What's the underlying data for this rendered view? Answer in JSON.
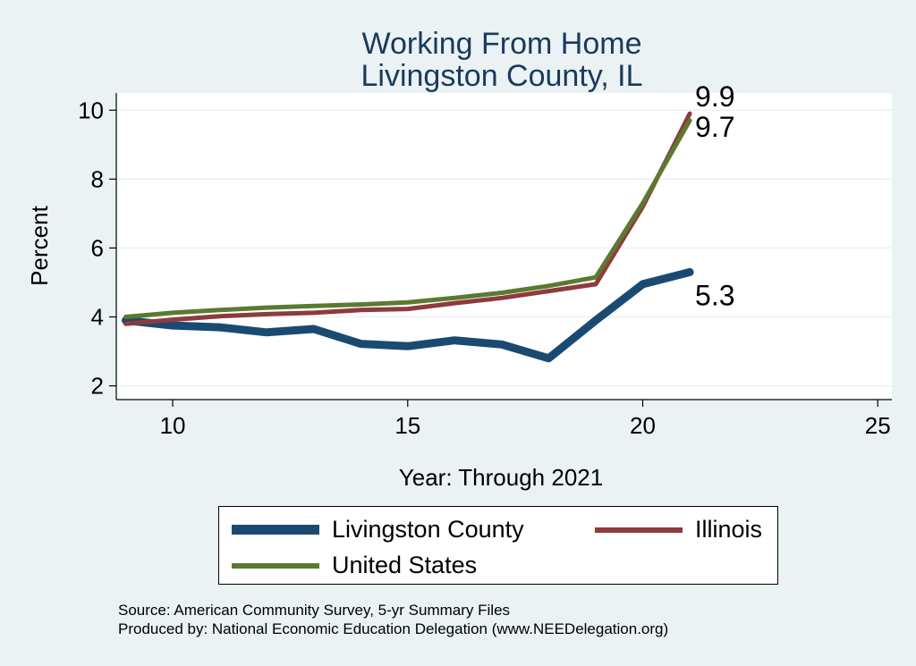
{
  "chart_data": {
    "type": "line",
    "title": "Working From Home",
    "subtitle": "Livingston County, IL",
    "xlabel": "Year: Through 2021",
    "ylabel": "Percent",
    "xlim": [
      8.8,
      25.3
    ],
    "ylim": [
      1.6,
      10.5
    ],
    "xticks": [
      10,
      15,
      20,
      25
    ],
    "yticks": [
      2,
      4,
      6,
      8,
      10
    ],
    "grid": true,
    "legend_position": "bottom",
    "x": [
      9,
      10,
      11,
      12,
      13,
      14,
      15,
      16,
      17,
      18,
      19,
      20,
      21
    ],
    "series": [
      {
        "name": "Livingston County",
        "color": "#1a4a72",
        "values": [
          3.9,
          3.75,
          3.7,
          3.55,
          3.65,
          3.22,
          3.15,
          3.32,
          3.2,
          2.8,
          3.9,
          4.95,
          5.3
        ],
        "end_label": "5.3"
      },
      {
        "name": "Illinois",
        "color": "#8f3a3d",
        "values": [
          3.8,
          3.92,
          4.02,
          4.08,
          4.12,
          4.2,
          4.23,
          4.4,
          4.55,
          4.75,
          4.95,
          7.2,
          9.9
        ],
        "end_label": "9.9"
      },
      {
        "name": "United States",
        "color": "#5a7a30",
        "values": [
          4.0,
          4.12,
          4.2,
          4.27,
          4.32,
          4.36,
          4.42,
          4.55,
          4.7,
          4.9,
          5.15,
          7.3,
          9.7
        ],
        "end_label": "9.7"
      }
    ]
  },
  "source_lines": {
    "line1": "Source: American Community Survey, 5-yr Summary Files",
    "line2": "Produced by: National Economic Education Delegation (www.NEEDelegation.org)"
  }
}
